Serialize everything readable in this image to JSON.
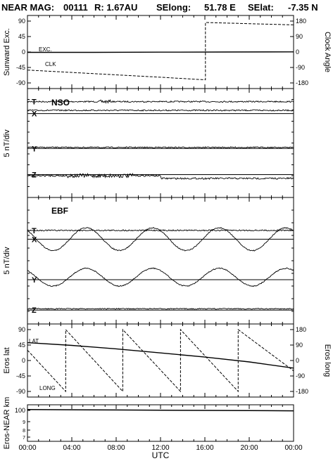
{
  "header": {
    "mission": "NEAR MAG:",
    "day": "00111",
    "range": "R: 1.67AU",
    "selong_label": "SElong:",
    "selong": "51.78 E",
    "selat_label": "SElat:",
    "selat": "-7.35 N"
  },
  "xaxis": {
    "label": "UTC",
    "ticks": [
      "00:00",
      "04:00",
      "08:00",
      "12:00",
      "16:00",
      "20:00",
      "00:00"
    ],
    "range_hours": [
      0,
      24
    ]
  },
  "chart_data": [
    {
      "type": "line",
      "ylabel": "Sunward Exc.",
      "ylabel_right": "Clock Angle",
      "ylim": [
        -90,
        90
      ],
      "yticks": [
        "90",
        "45",
        "0",
        "-45",
        "-90"
      ],
      "ylim_right": [
        -180,
        180
      ],
      "yticks_right": [
        "180",
        "90",
        "0",
        "-90",
        "-180"
      ],
      "series": [
        {
          "name": "EXC.",
          "style": "solid",
          "x": [
            0,
            6,
            12,
            18,
            24
          ],
          "y": [
            -1,
            -1,
            -0.5,
            0,
            0.5
          ]
        },
        {
          "name": "CLK",
          "style": "dashed",
          "axis": "right",
          "x": [
            0,
            6,
            12,
            16.05,
            16.05,
            20,
            24
          ],
          "y": [
            -105,
            -126,
            -147,
            -162,
            172,
            165,
            158
          ]
        }
      ]
    },
    {
      "type": "line",
      "ylabel": "5 nT/div",
      "title": "NSO",
      "traces": [
        {
          "name": "T",
          "style": "solid",
          "baseline": 0.12,
          "shape": "flat",
          "noise": 0.012,
          "burst": [
            6.5,
            7.5
          ]
        },
        {
          "name": "X",
          "style": "solid",
          "baseline": 0.23,
          "shape": "flat",
          "noise": 0.0
        },
        {
          "name": "",
          "style": "solid",
          "baseline": 0.2,
          "shape": "flat",
          "noise": 0.012
        },
        {
          "name": "Y",
          "style": "solid",
          "baseline": 0.55,
          "shape": "flat",
          "noise": 0.0
        },
        {
          "name": "",
          "style": "solid",
          "baseline": 0.54,
          "shape": "flat",
          "noise": 0.01
        },
        {
          "name": "Z",
          "style": "solid",
          "baseline": 0.79,
          "shape": "flat",
          "noise": 0.0
        },
        {
          "name": "",
          "style": "solid",
          "baseline": 0.8,
          "shape": "step",
          "noise": 0.015,
          "burst": [
            3.5,
            9.5
          ]
        }
      ]
    },
    {
      "type": "line",
      "ylabel": "5 nT/div",
      "title": "EBF",
      "traces": [
        {
          "name": "T",
          "style": "solid",
          "baseline": 0.26,
          "shape": "flat",
          "noise": 0.01
        },
        {
          "name": "X",
          "style": "solid",
          "baseline": 0.33,
          "shape": "flat",
          "noise": 0.0
        },
        {
          "name": "",
          "style": "solid",
          "baseline": 0.33,
          "shape": "sine",
          "amp": 0.09,
          "period": 6.0,
          "noise": 0.008
        },
        {
          "name": "Y",
          "style": "solid",
          "baseline": 0.65,
          "shape": "flat",
          "noise": 0.0
        },
        {
          "name": "",
          "style": "solid",
          "baseline": 0.63,
          "shape": "sine",
          "amp": 0.07,
          "period": 6.0,
          "noise": 0.008
        },
        {
          "name": "Z",
          "style": "solid",
          "baseline": 0.89,
          "shape": "flat",
          "noise": 0.0
        },
        {
          "name": "",
          "style": "solid",
          "baseline": 0.88,
          "shape": "flat",
          "noise": 0.008
        }
      ]
    },
    {
      "type": "line",
      "ylabel": "Eros lat",
      "ylabel_right": "Eros long",
      "ylim": [
        -90,
        90
      ],
      "yticks": [
        "90",
        "45",
        "0",
        "-45",
        "-90"
      ],
      "ylim_right": [
        -180,
        180
      ],
      "yticks_right": [
        "180",
        "90",
        "0",
        "-90",
        "-180"
      ],
      "series": [
        {
          "name": "LAT",
          "style": "solid",
          "x": [
            0,
            4,
            8,
            12,
            16,
            20,
            24
          ],
          "y": [
            52,
            44,
            34,
            22,
            10,
            -4,
            -22
          ]
        },
        {
          "name": "LONG",
          "style": "dashed",
          "axis": "right",
          "x": [
            0,
            3.45,
            3.45,
            8.6,
            8.6,
            13.8,
            13.8,
            19.0,
            19.0,
            24
          ],
          "y": [
            60,
            -180,
            180,
            -180,
            180,
            -180,
            180,
            -180,
            180,
            -60
          ]
        }
      ]
    },
    {
      "type": "line",
      "ylabel": "Eros-NEAR km",
      "yscale": "log",
      "yticks": [
        "100",
        "9",
        "8",
        "7"
      ],
      "series": [
        {
          "name": "",
          "style": "solid",
          "x": [
            0,
            8,
            16,
            24
          ],
          "y": [
            102,
            101,
            100,
            99
          ]
        }
      ]
    }
  ]
}
